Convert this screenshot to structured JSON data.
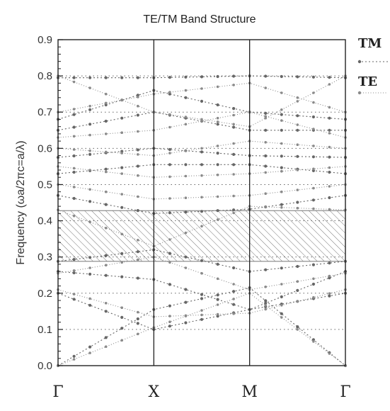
{
  "chart_data": {
    "type": "line",
    "title": "TE/TM Band Structure",
    "ylabel": "Frequency (ωa/2πc=a/λ)",
    "xlabel": "",
    "ylim": [
      0,
      0.9
    ],
    "yticks": [
      "0.0",
      "0.1",
      "0.2",
      "0.3",
      "0.4",
      "0.5",
      "0.6",
      "0.7",
      "0.8",
      "0.9"
    ],
    "x": [
      0,
      1,
      2,
      3
    ],
    "xtick_labels": [
      "Γ",
      "X",
      "M",
      "Γ"
    ],
    "grid": true,
    "legend_position": "right",
    "band_gap": {
      "from": 0.288,
      "to": 0.428
    },
    "colors": {
      "TM": "#666666",
      "TE": "#8a8a8a",
      "gap_hatch": "#777777",
      "axis": "#222222"
    },
    "series": [
      {
        "name": "TM",
        "bands": [
          [
            0.0,
            0.155,
            0.215,
            0.0
          ],
          [
            0.2,
            0.1,
            0.155,
            0.2
          ],
          [
            0.26,
            0.238,
            0.155,
            0.26
          ],
          [
            0.288,
            0.32,
            0.26,
            0.288
          ],
          [
            0.47,
            0.42,
            0.432,
            0.47
          ],
          [
            0.53,
            0.555,
            0.555,
            0.53
          ],
          [
            0.575,
            0.6,
            0.58,
            0.575
          ],
          [
            0.65,
            0.7,
            0.65,
            0.65
          ],
          [
            0.68,
            0.76,
            0.7,
            0.68
          ],
          [
            0.795,
            0.795,
            0.8,
            0.795
          ]
        ]
      },
      {
        "name": "TE",
        "bands": [
          [
            0.0,
            0.105,
            0.2,
            0.0
          ],
          [
            0.21,
            0.135,
            0.145,
            0.21
          ],
          [
            0.255,
            0.3,
            0.21,
            0.255
          ],
          [
            0.43,
            0.33,
            0.44,
            0.43
          ],
          [
            0.5,
            0.46,
            0.47,
            0.5
          ],
          [
            0.55,
            0.52,
            0.53,
            0.55
          ],
          [
            0.6,
            0.58,
            0.62,
            0.6
          ],
          [
            0.63,
            0.65,
            0.7,
            0.63
          ],
          [
            0.7,
            0.75,
            0.78,
            0.7
          ],
          [
            0.8,
            0.7,
            0.66,
            0.8
          ]
        ]
      }
    ]
  }
}
